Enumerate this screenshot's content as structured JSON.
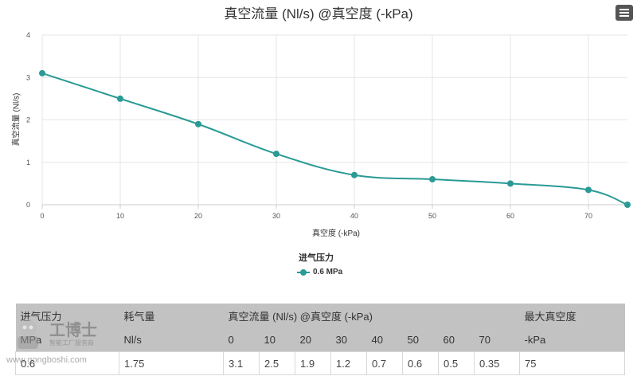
{
  "chart": {
    "title": "真空流量 (Nl/s) @真空度 (-kPa)",
    "y_axis_title": "真空流量 (Nl/s)",
    "x_axis_title": "真空度 (-kPa)",
    "legend_title": "进气压力",
    "series_label": "0.6 MPa",
    "menu_icon": "hamburger-menu-icon"
  },
  "chart_data": {
    "type": "line",
    "title": "真空流量 (Nl/s) @真空度 (-kPa)",
    "xlabel": "真空度 (-kPa)",
    "ylabel": "真空流量 (Nl/s)",
    "xlim": [
      0,
      75
    ],
    "ylim": [
      0,
      4
    ],
    "x_ticks": [
      "0",
      "10",
      "20",
      "30",
      "40",
      "50",
      "60",
      "70"
    ],
    "y_ticks": [
      "0",
      "1",
      "2",
      "3",
      "4"
    ],
    "grid": true,
    "legend": "bottom-center",
    "series": [
      {
        "name": "0.6 MPa",
        "color": "#2a9a95",
        "x": [
          0,
          10,
          20,
          30,
          40,
          50,
          60,
          70,
          75
        ],
        "y": [
          3.1,
          2.5,
          1.9,
          1.2,
          0.7,
          0.6,
          0.5,
          0.35,
          0
        ]
      }
    ]
  },
  "table": {
    "header_row1": [
      "进气压力",
      "耗气量",
      "真空流量 (Nl/s) @真空度 (-kPa)",
      "最大真空度"
    ],
    "header_row2": [
      "MPa",
      "Nl/s",
      "0",
      "10",
      "20",
      "30",
      "40",
      "50",
      "60",
      "70",
      "-kPa"
    ],
    "row": [
      "0.6",
      "1.75",
      "3.1",
      "2.5",
      "1.9",
      "1.2",
      "0.7",
      "0.6",
      "0.5",
      "0.35",
      "75"
    ]
  },
  "watermark": {
    "brand": "工博士",
    "tagline": "智能工厂服务商",
    "url": "www.gongboshi.com"
  }
}
